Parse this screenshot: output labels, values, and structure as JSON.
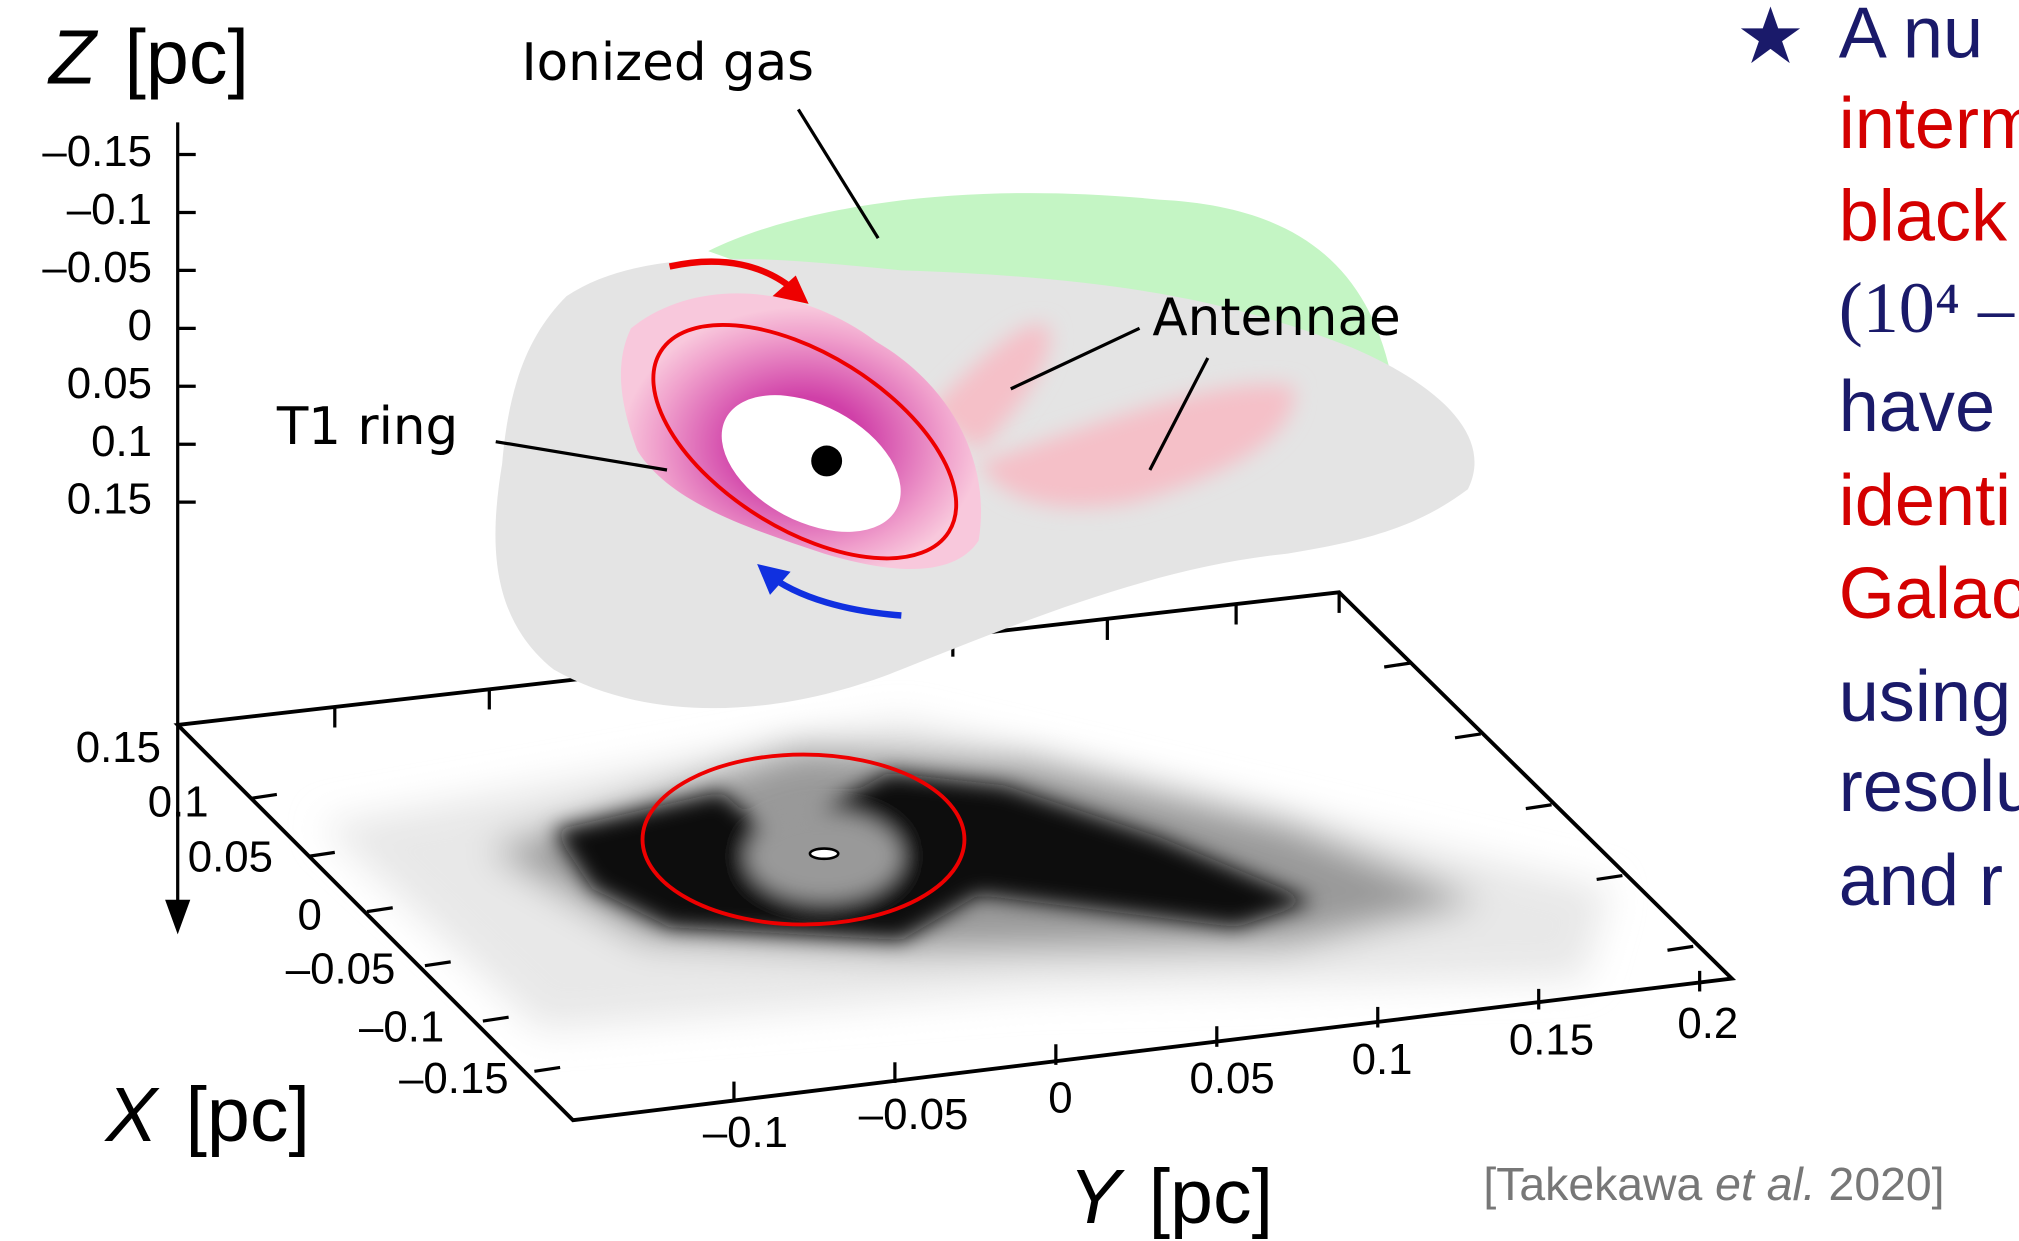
{
  "figure": {
    "z_axis": {
      "symbol": "Z",
      "unit": "[pc]",
      "ticks": [
        "–0.15",
        "–0.1",
        "–0.05",
        "0",
        "0.05",
        "0.1",
        "0.15"
      ]
    },
    "x_axis": {
      "symbol": "X",
      "unit": "[pc]",
      "ticks": [
        "0.15",
        "0.1",
        "0.05",
        "0",
        "–0.05",
        "–0.1",
        "–0.15"
      ]
    },
    "y_axis": {
      "symbol": "Y",
      "unit": "[pc]",
      "ticks": [
        "–0.1",
        "–0.05",
        "0",
        "0.05",
        "0.1",
        "0.15",
        "0.2"
      ]
    },
    "annotations": [
      "Ionized gas",
      "Antennae",
      "T1 ring"
    ]
  },
  "text_panel": {
    "lines": [
      "A nu",
      "interm",
      "black",
      "(10⁴ –",
      "have",
      "identi",
      "Galac",
      "using",
      "resolu",
      "and r"
    ]
  },
  "citation": {
    "parts": [
      "[Takekawa ",
      "et al.",
      " 2020]"
    ]
  }
}
